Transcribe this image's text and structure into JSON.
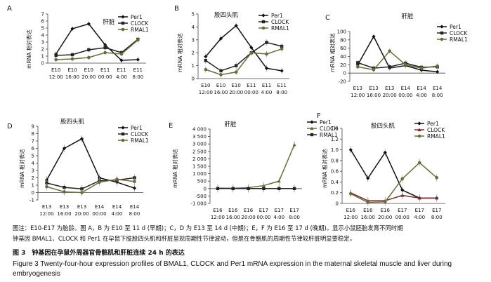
{
  "chart_data": [
    {
      "panel": "A",
      "title": "肝脏",
      "type": "line",
      "ylabel": "mRNA 相对表达",
      "ylim": [
        0,
        7
      ],
      "yticks": [
        "0",
        "1",
        "2",
        "3",
        "4",
        "5",
        "6",
        "7"
      ],
      "x": [
        [
          "E10",
          "12:00"
        ],
        [
          "E10",
          "16:00"
        ],
        [
          "E10",
          "20:00"
        ],
        [
          "E11",
          "00:00"
        ],
        [
          "E11",
          "4:00"
        ],
        [
          "E11",
          "8:00"
        ]
      ],
      "series": [
        {
          "name": "Per1",
          "values": [
            1.3,
            4.9,
            5.6,
            2.6,
            0.4,
            0.5
          ],
          "color": "#111111",
          "marker": "diamond"
        },
        {
          "name": "CLOCK",
          "values": [
            1.1,
            1.2,
            1.9,
            2.2,
            1.5,
            3.4
          ],
          "color": "#222222",
          "marker": "square"
        },
        {
          "name": "RMAL1",
          "values": [
            0.5,
            0.6,
            0.8,
            1.5,
            1.3,
            3.3
          ],
          "color": "#6b6b3a",
          "marker": "circle"
        }
      ]
    },
    {
      "panel": "B",
      "title": "股四头肌",
      "type": "line",
      "ylabel": "mRNA 相对表达",
      "ylim": [
        0,
        5
      ],
      "yticks": [
        "0",
        "1",
        "2",
        "3",
        "4",
        "5"
      ],
      "x": [
        [
          "E10",
          "12:00"
        ],
        [
          "E10",
          "16:00"
        ],
        [
          "E10",
          "20:00"
        ],
        [
          "E11",
          "00:00"
        ],
        [
          "E11",
          "4:00"
        ],
        [
          "E11",
          "8:00"
        ]
      ],
      "series": [
        {
          "name": "Per1",
          "values": [
            1.7,
            3.1,
            4.1,
            2.4,
            0.8,
            0.6
          ],
          "color": "#111111",
          "marker": "diamond"
        },
        {
          "name": "CLOCK",
          "values": [
            1.4,
            0.6,
            1.0,
            2.0,
            2.8,
            2.5
          ],
          "color": "#222222",
          "marker": "square"
        },
        {
          "name": "RMAL1",
          "values": [
            0.7,
            0.3,
            0.5,
            2.0,
            1.9,
            2.3
          ],
          "color": "#6b6b3a",
          "marker": "circle"
        }
      ]
    },
    {
      "panel": "C",
      "title": "肝脏",
      "type": "line",
      "ylabel": "mRNA 相对表达",
      "ylim": [
        -20,
        100
      ],
      "yticks": [
        "-20",
        "0",
        "20",
        "40",
        "60",
        "80",
        "100"
      ],
      "x": [
        [
          "E13",
          "12:00"
        ],
        [
          "E13",
          "16:00"
        ],
        [
          "E13",
          "20:00"
        ],
        [
          "E14",
          "00:00"
        ],
        [
          "E14",
          "4:00"
        ],
        [
          "E14",
          "8:00"
        ]
      ],
      "series": [
        {
          "name": "Per1",
          "values": [
            20,
            88,
            12,
            18,
            7,
            3
          ],
          "color": "#111111",
          "marker": "diamond"
        },
        {
          "name": "CLOCK",
          "values": [
            25,
            12,
            15,
            24,
            14,
            15
          ],
          "color": "#222222",
          "marker": "square"
        },
        {
          "name": "RMAL1",
          "values": [
            15,
            8,
            53,
            20,
            12,
            17
          ],
          "color": "#6b6b3a",
          "marker": "circle"
        }
      ]
    },
    {
      "panel": "D",
      "title": "股四头肌",
      "type": "line",
      "ylabel": "mRNA 相对表达",
      "ylim": [
        -1,
        9
      ],
      "yticks": [
        "-1",
        "0",
        "1",
        "2",
        "3",
        "4",
        "5",
        "6",
        "7",
        "8",
        "9"
      ],
      "x": [
        [
          "E13",
          "12:00"
        ],
        [
          "E13",
          "16:00"
        ],
        [
          "E13",
          "20:00"
        ],
        [
          "E14",
          "00:00"
        ],
        [
          "E14",
          "4:00"
        ],
        [
          "E14",
          "8:00"
        ]
      ],
      "series": [
        {
          "name": "Per1",
          "values": [
            1.7,
            6.0,
            7.3,
            2.0,
            1.4,
            0.6
          ],
          "color": "#111111",
          "marker": "diamond"
        },
        {
          "name": "CLOCK",
          "values": [
            1.3,
            0.7,
            0.5,
            1.6,
            1.7,
            2.0
          ],
          "color": "#222222",
          "marker": "square"
        },
        {
          "name": "RMAL1",
          "values": [
            0.8,
            0.1,
            0.0,
            1.4,
            1.8,
            1.5
          ],
          "color": "#6b6b3a",
          "marker": "circle"
        }
      ]
    },
    {
      "panel": "E",
      "title": "肝脏",
      "type": "line",
      "ylabel": "mRNA 相对表达",
      "ylim": [
        -1000,
        4000
      ],
      "yticks": [
        "-1 000",
        "-500",
        "0",
        "500",
        "1 000",
        "1 500",
        "2 000",
        "2 500",
        "3 000",
        "3 500",
        "4 000"
      ],
      "x": [
        [
          "E16",
          "12:00"
        ],
        [
          "E16",
          "16:00"
        ],
        [
          "E16",
          "20:00"
        ],
        [
          "E17",
          "00:00"
        ],
        [
          "E17",
          "4:00"
        ],
        [
          "E17",
          "8:00"
        ]
      ],
      "series": [
        {
          "name": "Per1",
          "values": [
            0,
            0,
            0,
            0,
            0,
            0
          ],
          "color": "#111111",
          "marker": "diamond"
        },
        {
          "name": "CLOCK",
          "values": [
            30,
            20,
            60,
            200,
            500,
            2950
          ],
          "color": "#6b6b3a",
          "marker": "triangle"
        },
        {
          "name": "RMAL1",
          "values": [
            0,
            0,
            0,
            0,
            0,
            0
          ],
          "color": "#222222",
          "marker": "square"
        }
      ]
    },
    {
      "panel": "F",
      "title": "股四头肌",
      "type": "line",
      "ylabel": "mRNA 相对表达",
      "ylim": [
        0,
        1.4
      ],
      "yticks": [
        "0",
        "0.2",
        "0.4",
        "0.6",
        "0.8",
        "1.0",
        "1.2",
        "1.4"
      ],
      "x": [
        [
          "E16",
          "12:00"
        ],
        [
          "E16",
          "16:00"
        ],
        [
          "E16",
          "20:00"
        ],
        [
          "E17",
          "00:00"
        ],
        [
          "E17",
          "4:00"
        ],
        [
          "E17",
          "8:00"
        ]
      ],
      "series": [
        {
          "name": "Per1",
          "values": [
            1.0,
            0.47,
            0.95,
            0.25,
            0.1,
            0.1
          ],
          "color": "#111111",
          "marker": "diamond"
        },
        {
          "name": "CLOCK",
          "values": [
            0.2,
            0.05,
            0.05,
            0.15,
            0.1,
            0.1
          ],
          "color": "#7a2a2a",
          "marker": "triangle"
        },
        {
          "name": "RMAL1",
          "values": [
            0.18,
            0.02,
            0.03,
            0.46,
            0.76,
            0.48
          ],
          "color": "#6b6b3a",
          "marker": "circle"
        }
      ]
    }
  ],
  "caption": {
    "note_line1": "图注：E10-E17 为胎龄。图 A，B 为 E10 至 11 d (早期)；C，D 为 E13 至 14 d (中期)；E，F 为 E16 至 17 d (晚期)。显示小鼠胚胎发育不同时期",
    "note_line2": "钟基因 BMAL1、CLOCK 和 Per1 在孕鼠下肢股四头肌和肝脏呈现周期性节律波动，但是在骨骼肌的周期性节律较肝脏明显要稳定。",
    "figure_title": "图 3　钟基因在孕鼠外周器官骨骼肌和肝脏连续 24 h 的表达",
    "english_title": "Figure 3    Twenty-four-hour expression profiles of BMAL1, CLOCK and Per1 mRNA expression in the maternal skeletal muscle and liver during embryogenesis"
  }
}
